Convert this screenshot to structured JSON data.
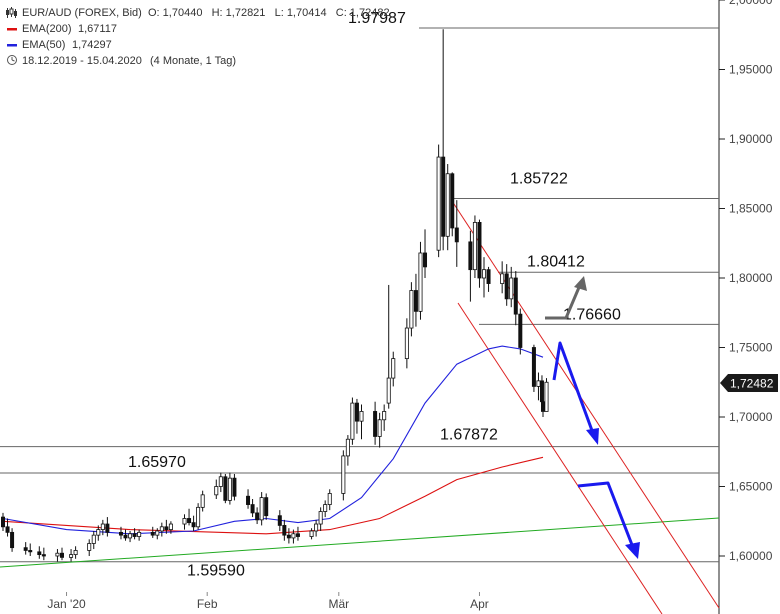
{
  "legend": {
    "title": "EUR/AUD (FOREX, Bid)",
    "ohlc": "O: 1,70440   H: 1,72821   L: 1,70414   C: 1,72482",
    "ema200_label": "EMA(200)",
    "ema200_value": "1,67117",
    "ema50_label": "EMA(50)",
    "ema50_value": "1,74297",
    "range_text": "18.12.2019 - 15.04.2020",
    "range_detail": "(4 Monate, 1 Tag)",
    "colors": {
      "ema200": "#dd1111",
      "ema50": "#2222dd",
      "trend": "#22aa22",
      "channel": "#dd2222",
      "arrow_blue": "#1a1aee",
      "arrow_gray": "#666666"
    }
  },
  "price_tag": "1,72482",
  "chart_data": {
    "type": "candlestick",
    "title": "EUR/AUD (FOREX, Bid)",
    "x_range": [
      "2019-12-18",
      "2020-04-15"
    ],
    "x_ticks": [
      "Jan '20",
      "Feb",
      "Mär",
      "Apr"
    ],
    "y_ticks": [
      "1,60000",
      "1,65000",
      "1,70000",
      "1,75000",
      "1,80000",
      "1,85000",
      "1,90000",
      "1,95000",
      "2,00000"
    ],
    "ylim": [
      1.575,
      2.0
    ],
    "candles": [
      {
        "date": "2019-12-18",
        "o": 1.628,
        "h": 1.631,
        "l": 1.618,
        "c": 1.621
      },
      {
        "date": "2019-12-19",
        "o": 1.621,
        "h": 1.627,
        "l": 1.614,
        "c": 1.617
      },
      {
        "date": "2019-12-20",
        "o": 1.617,
        "h": 1.62,
        "l": 1.603,
        "c": 1.606
      },
      {
        "date": "2019-12-23",
        "o": 1.606,
        "h": 1.61,
        "l": 1.601,
        "c": 1.604
      },
      {
        "date": "2019-12-24",
        "o": 1.604,
        "h": 1.609,
        "l": 1.6,
        "c": 1.603
      },
      {
        "date": "2019-12-26",
        "o": 1.603,
        "h": 1.607,
        "l": 1.598,
        "c": 1.601
      },
      {
        "date": "2019-12-27",
        "o": 1.601,
        "h": 1.606,
        "l": 1.597,
        "c": 1.6
      },
      {
        "date": "2019-12-30",
        "o": 1.6,
        "h": 1.605,
        "l": 1.596,
        "c": 1.602
      },
      {
        "date": "2019-12-31",
        "o": 1.602,
        "h": 1.606,
        "l": 1.597,
        "c": 1.599
      },
      {
        "date": "2020-01-02",
        "o": 1.599,
        "h": 1.605,
        "l": 1.596,
        "c": 1.601
      },
      {
        "date": "2020-01-03",
        "o": 1.601,
        "h": 1.607,
        "l": 1.598,
        "c": 1.604
      },
      {
        "date": "2020-01-06",
        "o": 1.604,
        "h": 1.612,
        "l": 1.6,
        "c": 1.609
      },
      {
        "date": "2020-01-07",
        "o": 1.609,
        "h": 1.618,
        "l": 1.605,
        "c": 1.615
      },
      {
        "date": "2020-01-08",
        "o": 1.615,
        "h": 1.622,
        "l": 1.611,
        "c": 1.619
      },
      {
        "date": "2020-01-09",
        "o": 1.619,
        "h": 1.626,
        "l": 1.615,
        "c": 1.623
      },
      {
        "date": "2020-01-10",
        "o": 1.623,
        "h": 1.628,
        "l": 1.614,
        "c": 1.617
      },
      {
        "date": "2020-01-13",
        "o": 1.617,
        "h": 1.621,
        "l": 1.612,
        "c": 1.615
      },
      {
        "date": "2020-01-14",
        "o": 1.615,
        "h": 1.619,
        "l": 1.611,
        "c": 1.613
      },
      {
        "date": "2020-01-15",
        "o": 1.613,
        "h": 1.618,
        "l": 1.61,
        "c": 1.616
      },
      {
        "date": "2020-01-16",
        "o": 1.616,
        "h": 1.62,
        "l": 1.612,
        "c": 1.614
      },
      {
        "date": "2020-01-17",
        "o": 1.614,
        "h": 1.619,
        "l": 1.611,
        "c": 1.617
      },
      {
        "date": "2020-01-20",
        "o": 1.617,
        "h": 1.621,
        "l": 1.613,
        "c": 1.615
      },
      {
        "date": "2020-01-21",
        "o": 1.615,
        "h": 1.62,
        "l": 1.612,
        "c": 1.618
      },
      {
        "date": "2020-01-22",
        "o": 1.618,
        "h": 1.624,
        "l": 1.614,
        "c": 1.621
      },
      {
        "date": "2020-01-23",
        "o": 1.621,
        "h": 1.626,
        "l": 1.616,
        "c": 1.619
      },
      {
        "date": "2020-01-24",
        "o": 1.619,
        "h": 1.625,
        "l": 1.616,
        "c": 1.623
      },
      {
        "date": "2020-01-27",
        "o": 1.623,
        "h": 1.63,
        "l": 1.619,
        "c": 1.627
      },
      {
        "date": "2020-01-28",
        "o": 1.627,
        "h": 1.634,
        "l": 1.622,
        "c": 1.624
      },
      {
        "date": "2020-01-29",
        "o": 1.624,
        "h": 1.629,
        "l": 1.618,
        "c": 1.621
      },
      {
        "date": "2020-01-30",
        "o": 1.621,
        "h": 1.638,
        "l": 1.619,
        "c": 1.635
      },
      {
        "date": "2020-01-31",
        "o": 1.635,
        "h": 1.647,
        "l": 1.632,
        "c": 1.644
      },
      {
        "date": "2020-02-03",
        "o": 1.644,
        "h": 1.655,
        "l": 1.641,
        "c": 1.65
      },
      {
        "date": "2020-02-04",
        "o": 1.65,
        "h": 1.66,
        "l": 1.646,
        "c": 1.657
      },
      {
        "date": "2020-02-05",
        "o": 1.657,
        "h": 1.659,
        "l": 1.638,
        "c": 1.64
      },
      {
        "date": "2020-02-06",
        "o": 1.64,
        "h": 1.66,
        "l": 1.637,
        "c": 1.656
      },
      {
        "date": "2020-02-07",
        "o": 1.656,
        "h": 1.659,
        "l": 1.64,
        "c": 1.643
      },
      {
        "date": "2020-02-10",
        "o": 1.643,
        "h": 1.648,
        "l": 1.634,
        "c": 1.637
      },
      {
        "date": "2020-02-11",
        "o": 1.637,
        "h": 1.641,
        "l": 1.628,
        "c": 1.631
      },
      {
        "date": "2020-02-12",
        "o": 1.631,
        "h": 1.635,
        "l": 1.623,
        "c": 1.626
      },
      {
        "date": "2020-02-13",
        "o": 1.626,
        "h": 1.646,
        "l": 1.622,
        "c": 1.642
      },
      {
        "date": "2020-02-14",
        "o": 1.642,
        "h": 1.645,
        "l": 1.626,
        "c": 1.629
      },
      {
        "date": "2020-02-17",
        "o": 1.629,
        "h": 1.633,
        "l": 1.618,
        "c": 1.622
      },
      {
        "date": "2020-02-18",
        "o": 1.622,
        "h": 1.626,
        "l": 1.611,
        "c": 1.615
      },
      {
        "date": "2020-02-19",
        "o": 1.615,
        "h": 1.62,
        "l": 1.609,
        "c": 1.613
      },
      {
        "date": "2020-02-20",
        "o": 1.613,
        "h": 1.619,
        "l": 1.609,
        "c": 1.616
      },
      {
        "date": "2020-02-21",
        "o": 1.616,
        "h": 1.621,
        "l": 1.611,
        "c": 1.614
      },
      {
        "date": "2020-02-24",
        "o": 1.614,
        "h": 1.62,
        "l": 1.612,
        "c": 1.618
      },
      {
        "date": "2020-02-25",
        "o": 1.618,
        "h": 1.626,
        "l": 1.614,
        "c": 1.623
      },
      {
        "date": "2020-02-26",
        "o": 1.623,
        "h": 1.635,
        "l": 1.618,
        "c": 1.632
      },
      {
        "date": "2020-02-27",
        "o": 1.632,
        "h": 1.64,
        "l": 1.628,
        "c": 1.637
      },
      {
        "date": "2020-02-28",
        "o": 1.637,
        "h": 1.648,
        "l": 1.633,
        "c": 1.645
      },
      {
        "date": "2020-03-02",
        "o": 1.645,
        "h": 1.676,
        "l": 1.64,
        "c": 1.672
      },
      {
        "date": "2020-03-03",
        "o": 1.672,
        "h": 1.687,
        "l": 1.665,
        "c": 1.684
      },
      {
        "date": "2020-03-04",
        "o": 1.684,
        "h": 1.714,
        "l": 1.68,
        "c": 1.71
      },
      {
        "date": "2020-03-05",
        "o": 1.71,
        "h": 1.713,
        "l": 1.688,
        "c": 1.697
      },
      {
        "date": "2020-03-06",
        "o": 1.697,
        "h": 1.709,
        "l": 1.684,
        "c": 1.704
      },
      {
        "date": "2020-03-09",
        "o": 1.704,
        "h": 1.711,
        "l": 1.68,
        "c": 1.686
      },
      {
        "date": "2020-03-10",
        "o": 1.686,
        "h": 1.703,
        "l": 1.678,
        "c": 1.698
      },
      {
        "date": "2020-03-11",
        "o": 1.698,
        "h": 1.709,
        "l": 1.69,
        "c": 1.704
      },
      {
        "date": "2020-03-12",
        "o": 1.71,
        "h": 1.795,
        "l": 1.706,
        "c": 1.728
      },
      {
        "date": "2020-03-13",
        "o": 1.728,
        "h": 1.747,
        "l": 1.722,
        "c": 1.742
      },
      {
        "date": "2020-03-16",
        "o": 1.742,
        "h": 1.771,
        "l": 1.735,
        "c": 1.764
      },
      {
        "date": "2020-03-17",
        "o": 1.764,
        "h": 1.797,
        "l": 1.758,
        "c": 1.791
      },
      {
        "date": "2020-03-18",
        "o": 1.791,
        "h": 1.803,
        "l": 1.765,
        "c": 1.776
      },
      {
        "date": "2020-03-19",
        "o": 1.776,
        "h": 1.826,
        "l": 1.77,
        "c": 1.818
      },
      {
        "date": "2020-03-20",
        "o": 1.818,
        "h": 1.835,
        "l": 1.8,
        "c": 1.808
      },
      {
        "date": "2020-03-23",
        "o": 1.82,
        "h": 1.896,
        "l": 1.815,
        "c": 1.887
      },
      {
        "date": "2020-03-24",
        "o": 1.887,
        "h": 1.979,
        "l": 1.82,
        "c": 1.83
      },
      {
        "date": "2020-03-25",
        "o": 1.83,
        "h": 1.882,
        "l": 1.82,
        "c": 1.875
      },
      {
        "date": "2020-03-26",
        "o": 1.875,
        "h": 1.876,
        "l": 1.83,
        "c": 1.836
      },
      {
        "date": "2020-03-27",
        "o": 1.836,
        "h": 1.856,
        "l": 1.808,
        "c": 1.826
      },
      {
        "date": "2020-03-30",
        "o": 1.826,
        "h": 1.834,
        "l": 1.783,
        "c": 1.806
      },
      {
        "date": "2020-03-31",
        "o": 1.806,
        "h": 1.845,
        "l": 1.8,
        "c": 1.84
      },
      {
        "date": "2020-04-01",
        "o": 1.84,
        "h": 1.842,
        "l": 1.793,
        "c": 1.8
      },
      {
        "date": "2020-04-02",
        "o": 1.8,
        "h": 1.815,
        "l": 1.786,
        "c": 1.806
      },
      {
        "date": "2020-04-03",
        "o": 1.806,
        "h": 1.808,
        "l": 1.79,
        "c": 1.796
      },
      {
        "date": "2020-04-06",
        "o": 1.796,
        "h": 1.812,
        "l": 1.789,
        "c": 1.803
      },
      {
        "date": "2020-04-07",
        "o": 1.803,
        "h": 1.81,
        "l": 1.78,
        "c": 1.785
      },
      {
        "date": "2020-04-08",
        "o": 1.785,
        "h": 1.808,
        "l": 1.779,
        "c": 1.8
      },
      {
        "date": "2020-04-09",
        "o": 1.8,
        "h": 1.805,
        "l": 1.766,
        "c": 1.774
      },
      {
        "date": "2020-04-10",
        "o": 1.774,
        "h": 1.778,
        "l": 1.745,
        "c": 1.75
      },
      {
        "date": "2020-04-13",
        "o": 1.75,
        "h": 1.752,
        "l": 1.718,
        "c": 1.722
      },
      {
        "date": "2020-04-14",
        "o": 1.722,
        "h": 1.732,
        "l": 1.712,
        "c": 1.726
      },
      {
        "date": "2020-04-14",
        "o": 1.726,
        "h": 1.73,
        "l": 1.707,
        "c": 1.711
      },
      {
        "date": "2020-04-15",
        "o": 1.711,
        "h": 1.714,
        "l": 1.7,
        "c": 1.704
      },
      {
        "date": "2020-04-15",
        "o": 1.704,
        "h": 1.728,
        "l": 1.704,
        "c": 1.725
      }
    ],
    "ema50": [
      [
        "2019-12-18",
        1.627
      ],
      [
        "2020-01-01",
        1.619
      ],
      [
        "2020-01-15",
        1.616
      ],
      [
        "2020-01-29",
        1.618
      ],
      [
        "2020-02-07",
        1.625
      ],
      [
        "2020-02-14",
        1.627
      ],
      [
        "2020-02-21",
        1.624
      ],
      [
        "2020-02-28",
        1.627
      ],
      [
        "2020-03-06",
        1.642
      ],
      [
        "2020-03-13",
        1.67
      ],
      [
        "2020-03-20",
        1.71
      ],
      [
        "2020-03-27",
        1.738
      ],
      [
        "2020-04-03",
        1.749
      ],
      [
        "2020-04-06",
        1.751
      ],
      [
        "2020-04-10",
        1.749
      ],
      [
        "2020-04-15",
        1.743
      ]
    ],
    "ema200": [
      [
        "2019-12-18",
        1.625
      ],
      [
        "2020-01-15",
        1.619
      ],
      [
        "2020-02-14",
        1.616
      ],
      [
        "2020-02-28",
        1.619
      ],
      [
        "2020-03-10",
        1.627
      ],
      [
        "2020-03-20",
        1.643
      ],
      [
        "2020-03-27",
        1.655
      ],
      [
        "2020-04-06",
        1.664
      ],
      [
        "2020-04-15",
        1.671
      ]
    ],
    "levels": [
      {
        "label": "1.97987",
        "value": 1.97987
      },
      {
        "label": "1.85722",
        "value": 1.85722
      },
      {
        "label": "1.80412",
        "value": 1.80412
      },
      {
        "label": "1.76660",
        "value": 1.7666
      },
      {
        "label": "1.67872",
        "value": 1.67872
      },
      {
        "label": "1.65970",
        "value": 1.6597
      },
      {
        "label": "1.59590",
        "value": 1.5959
      }
    ]
  }
}
